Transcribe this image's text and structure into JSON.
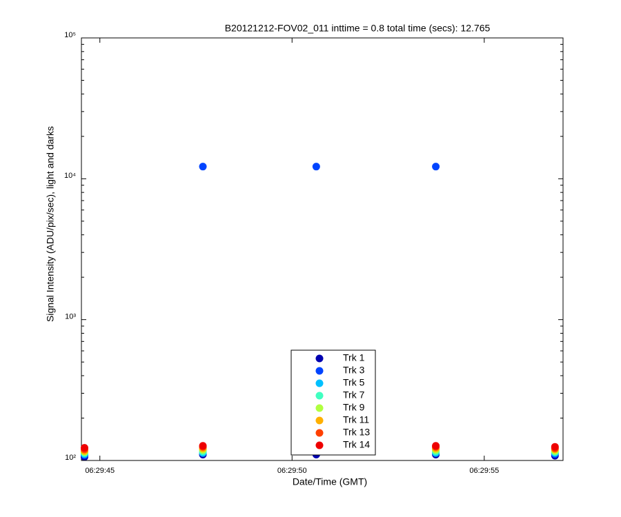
{
  "chart_data": {
    "type": "scatter",
    "title": "B20121212-FOV02_011 inttime = 0.8 total time (secs): 12.765",
    "xlabel": "Date/Time (GMT)",
    "ylabel": "Signal Intensity (ADU/pix/sec), light and darks",
    "x": [
      44.6,
      47.68,
      50.63,
      53.74,
      56.84
    ],
    "xlim": [
      44.52,
      57.05
    ],
    "xticks": [
      {
        "value": 45,
        "label": "06:29:45"
      },
      {
        "value": 50,
        "label": "06:29:50"
      },
      {
        "value": 55,
        "label": "06:29:55"
      }
    ],
    "ylim": [
      100,
      100000
    ],
    "ylog": true,
    "yticks": [
      {
        "value": 100,
        "label": "10²"
      },
      {
        "value": 1000,
        "label": "10³"
      },
      {
        "value": 10000,
        "label": "10⁴"
      },
      {
        "value": 100000,
        "label": "10⁵"
      }
    ],
    "legend": "bottom",
    "series": [
      {
        "name": "Trk 1",
        "color": "#0000b0",
        "values": [
          106,
          110,
          110,
          110,
          108
        ]
      },
      {
        "name": "Trk 3",
        "color": "#0044ff",
        "values": [
          109,
          12200,
          12200,
          12200,
          111
        ]
      },
      {
        "name": "Trk 5",
        "color": "#00c0ff",
        "values": [
          111,
          113,
          null,
          113,
          113
        ]
      },
      {
        "name": "Trk 7",
        "color": "#40ffc0",
        "values": [
          113,
          116,
          null,
          116,
          115
        ]
      },
      {
        "name": "Trk 9",
        "color": "#b0ff40",
        "values": [
          115,
          119,
          null,
          119,
          117
        ]
      },
      {
        "name": "Trk 11",
        "color": "#ffb000",
        "values": [
          117,
          122,
          null,
          122,
          120
        ]
      },
      {
        "name": "Trk 13",
        "color": "#ff4000",
        "values": [
          120,
          125,
          null,
          125,
          122
        ]
      },
      {
        "name": "Trk 14",
        "color": "#ee0000",
        "values": [
          123,
          127,
          null,
          127,
          125
        ]
      }
    ]
  }
}
